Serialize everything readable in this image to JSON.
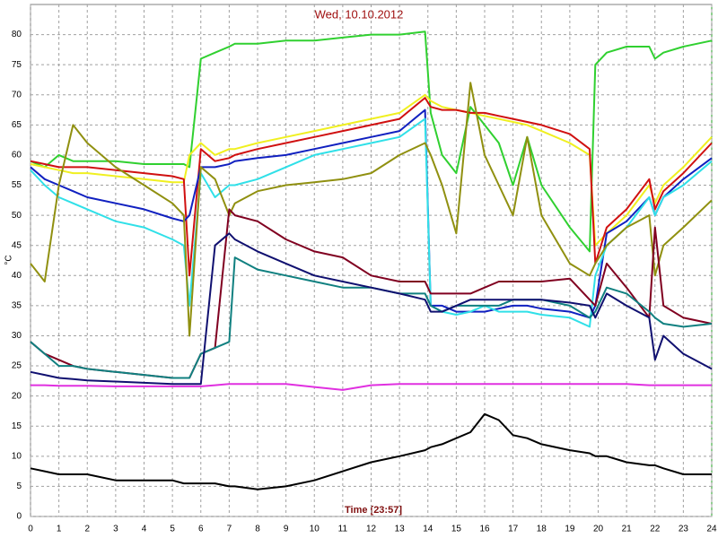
{
  "chart_data": {
    "type": "line",
    "title": "Wed, 10.10.2012",
    "x_label": "Time [23:57]",
    "y_label": "°C",
    "x": [
      0,
      0.5,
      1,
      1.5,
      2,
      3,
      4,
      5,
      5.4,
      5.6,
      6,
      6.5,
      7,
      7.2,
      8,
      9,
      10,
      11,
      12,
      13,
      13.9,
      14.1,
      14.5,
      15,
      15.5,
      16,
      16.5,
      17,
      17.5,
      18,
      19,
      19.7,
      19.9,
      20.3,
      21,
      21.8,
      22,
      22.3,
      23,
      24
    ],
    "xlim": [
      0,
      24
    ],
    "ylim": [
      0,
      85
    ],
    "xticks": [
      0,
      1,
      2,
      3,
      4,
      5,
      6,
      7,
      8,
      9,
      10,
      11,
      12,
      13,
      14,
      15,
      16,
      17,
      18,
      19,
      20,
      21,
      22,
      23,
      24
    ],
    "yticks": [
      0,
      5,
      10,
      15,
      20,
      25,
      30,
      35,
      40,
      45,
      50,
      55,
      60,
      65,
      70,
      75,
      80
    ],
    "grid": true,
    "series": [
      {
        "name": "green",
        "color": "#30d030",
        "values": [
          59,
          58,
          60,
          59,
          59,
          59,
          58.5,
          58.5,
          58.5,
          58,
          76,
          77,
          78,
          78.5,
          78.5,
          79,
          79,
          79.5,
          80,
          80,
          80.5,
          67,
          60,
          57,
          68,
          65,
          62,
          55,
          63,
          55,
          48,
          44,
          75,
          77,
          78,
          78,
          76,
          77,
          78,
          79
        ]
      },
      {
        "name": "yellow",
        "color": "#f0f020",
        "values": [
          58.5,
          58,
          57.5,
          57,
          57,
          56.5,
          56,
          55.5,
          55.5,
          60,
          62,
          60,
          61,
          61,
          62,
          63,
          64,
          65,
          66,
          67,
          70,
          69,
          68,
          67.5,
          67,
          66.5,
          66,
          65.5,
          65,
          64,
          62,
          60,
          45,
          47,
          50,
          55,
          52,
          55,
          58,
          63
        ]
      },
      {
        "name": "red",
        "color": "#d01010",
        "values": [
          59,
          58.5,
          58,
          58,
          58,
          57.5,
          57,
          56.5,
          56,
          40,
          61,
          59,
          59.5,
          60,
          61,
          62,
          63,
          64,
          65,
          66,
          69.5,
          68,
          67.5,
          67.5,
          67,
          67,
          66.5,
          66,
          65.5,
          65,
          63.5,
          61,
          42,
          48,
          51,
          56,
          51,
          54,
          57,
          62
        ]
      },
      {
        "name": "blue",
        "color": "#1020c0",
        "values": [
          58,
          56,
          55,
          54,
          53,
          52,
          51,
          49.5,
          49,
          50,
          58,
          58,
          58.5,
          59,
          59.5,
          60,
          61,
          62,
          63,
          64,
          67.5,
          35,
          35,
          34,
          34,
          34,
          34.5,
          35,
          35,
          34.5,
          34,
          33,
          35,
          47,
          49,
          53,
          50,
          53,
          56,
          59.5
        ]
      },
      {
        "name": "cyan",
        "color": "#30e0e8",
        "values": [
          57.5,
          55,
          53,
          52,
          51,
          49,
          48,
          46,
          45,
          35,
          57,
          53,
          55,
          55,
          56,
          58,
          60,
          61,
          62,
          63,
          66,
          35,
          34,
          33.5,
          34,
          35,
          34,
          34,
          34,
          33.5,
          33,
          31.5,
          40,
          45,
          48,
          53,
          50,
          53,
          55,
          59
        ]
      },
      {
        "name": "olive",
        "color": "#909010",
        "values": [
          42,
          39,
          55,
          65,
          62,
          58,
          55,
          52,
          50,
          30,
          58,
          56,
          50,
          52,
          54,
          55,
          55.5,
          56,
          57,
          60,
          62,
          60,
          55,
          47,
          72,
          60,
          55,
          50,
          63,
          50,
          42,
          40,
          42,
          45,
          48,
          50,
          40,
          45,
          48,
          52.5
        ]
      },
      {
        "name": "maroon",
        "color": "#800020",
        "values": [
          29,
          27,
          26,
          25,
          24.5,
          24,
          23.5,
          23,
          23,
          23,
          27,
          28,
          51,
          50,
          49,
          46,
          44,
          43,
          40,
          39,
          39,
          37,
          37,
          37,
          37,
          38,
          39,
          39,
          39,
          39,
          39.5,
          36,
          35,
          42,
          38,
          33,
          48,
          35,
          33,
          32
        ]
      },
      {
        "name": "teal",
        "color": "#108080",
        "values": [
          29,
          27,
          25,
          25,
          24.5,
          24,
          23.5,
          23,
          23,
          23,
          27,
          28,
          29,
          43,
          41,
          40,
          39,
          38,
          38,
          37,
          37,
          35,
          34,
          35,
          35,
          35,
          35,
          36,
          36,
          36,
          35,
          33,
          34,
          38,
          37,
          34,
          33,
          32,
          31.5,
          32
        ]
      },
      {
        "name": "navy",
        "color": "#101070",
        "values": [
          24,
          23.5,
          23,
          22.8,
          22.6,
          22.4,
          22.2,
          22,
          22,
          22,
          22,
          45,
          47,
          46,
          44,
          42,
          40,
          39,
          38,
          37,
          36,
          34,
          34,
          35,
          36,
          36,
          36,
          36,
          36,
          36,
          35.5,
          35,
          33,
          37,
          35,
          33,
          26,
          30,
          27,
          24.5
        ]
      },
      {
        "name": "magenta",
        "color": "#e030e0",
        "values": [
          21.8,
          21.8,
          21.7,
          21.7,
          21.7,
          21.6,
          21.6,
          21.6,
          21.6,
          21.6,
          21.6,
          21.8,
          22,
          22,
          22,
          22,
          21.5,
          21,
          21.8,
          22,
          22,
          22,
          22,
          22,
          22,
          22,
          22,
          22,
          22,
          22,
          22,
          22,
          22,
          22,
          22,
          21.8,
          21.8,
          21.8,
          21.8,
          21.8
        ]
      },
      {
        "name": "black",
        "color": "#000000",
        "values": [
          8,
          7.5,
          7,
          7,
          7,
          6,
          6,
          6,
          5.5,
          5.5,
          5.5,
          5.5,
          5,
          5,
          4.5,
          5,
          6,
          7.5,
          9,
          10,
          11,
          11.5,
          12,
          13,
          14,
          17,
          16,
          13.5,
          13,
          12,
          11,
          10.5,
          10,
          10,
          9,
          8.5,
          8.5,
          8,
          7,
          7
        ]
      }
    ]
  }
}
